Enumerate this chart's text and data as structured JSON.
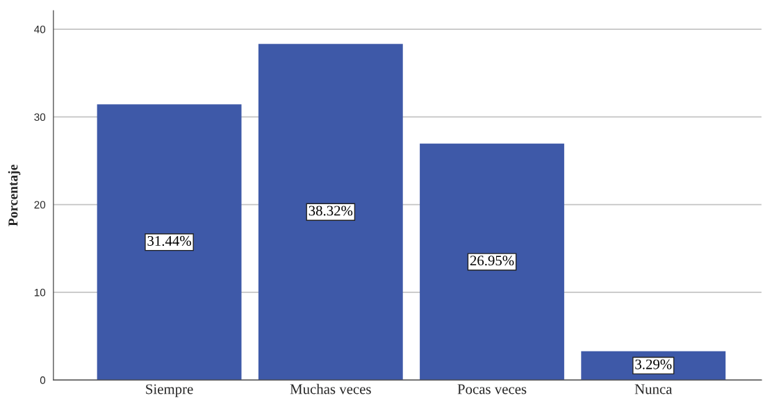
{
  "chart_data": {
    "type": "bar",
    "ylabel": "Porcentaje",
    "categories": [
      "Siempre",
      "Muchas veces",
      "Pocas veces",
      "Nunca"
    ],
    "values": [
      31.44,
      38.32,
      26.95,
      3.29
    ],
    "value_labels": [
      "31.44%",
      "38.32%",
      "26.95%",
      "3.29%"
    ],
    "color": "#3e59a8",
    "ylim": [
      0,
      42.1
    ],
    "yticks": [
      0,
      10,
      20,
      30,
      40
    ],
    "grid": "y",
    "legend": false
  }
}
